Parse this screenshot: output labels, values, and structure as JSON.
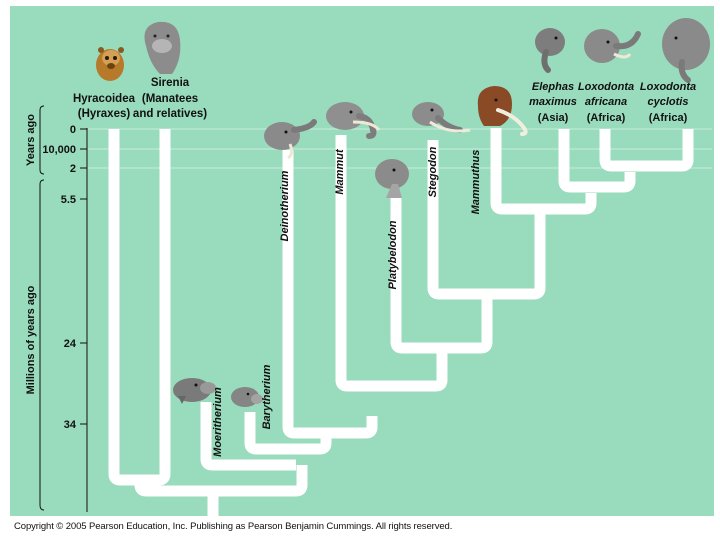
{
  "colors": {
    "background": "#99dbbd",
    "branch": "#ffffff",
    "text": "#111111",
    "page": "#ffffff"
  },
  "axis": {
    "years_label": "Years ago",
    "millions_label": "Millions of years ago",
    "ticks": [
      "0",
      "10,000",
      "2",
      "5.5",
      "24",
      "34"
    ]
  },
  "taxa_top": {
    "hyracoidea": {
      "line1": "Hyracoidea",
      "line2": "(Hyraxes)"
    },
    "sirenia": {
      "line1": "Sirenia",
      "line2": "(Manatees",
      "line3": "and relatives)"
    },
    "elephas": {
      "line1": "Elephas",
      "line2": "maximus",
      "line3": "(Asia)"
    },
    "loxodonta_africana": {
      "line1": "Loxodonta",
      "line2": "africana",
      "line3": "(Africa)"
    },
    "loxodonta_cyclotis": {
      "line1": "Loxodonta",
      "line2": "cyclotis",
      "line3": "(Africa)"
    }
  },
  "taxa_vertical": {
    "moeritherium": "Moeritherium",
    "barytherium": "Barytherium",
    "deinotherium": "Deinotherium",
    "mammut": "Mammut",
    "platybelodon": "Platybelodon",
    "stegodon": "Stegodon",
    "mammuthus": "Mammuthus"
  },
  "copyright": "Copyright © 2005 Pearson Education, Inc. Publishing as Pearson Benjamin Cummings. All rights reserved.",
  "icons": [
    "hyrax-icon",
    "manatee-icon",
    "moeritherium-icon",
    "barytherium-icon",
    "deinotherium-icon",
    "mammut-icon",
    "platybelodon-icon",
    "stegodon-icon",
    "mammoth-icon",
    "asian-elephant-icon",
    "african-elephant-icon",
    "forest-elephant-icon"
  ]
}
